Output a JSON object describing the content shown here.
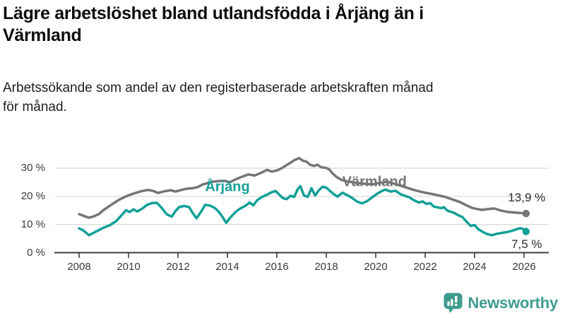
{
  "header": {
    "title": "Lägre arbetslöshet bland utlandsfödda i Årjäng än i\nVärmland",
    "subtitle": "Arbetssökande som andel av den registerbaserade arbetskraften månad\nför månad."
  },
  "footer": {
    "brand": "Newsworthy",
    "logo_icon": "bar-chart-speech-bubble-icon"
  },
  "colors": {
    "arjang_line": "#12A096",
    "varmland_line": "#757575",
    "grid": "#DBDBDB",
    "axis": "#3C3C3C",
    "tick_text": "#3A3A3A",
    "value_text": "#2B2B2B",
    "logo_teal": "#3E9C8F"
  },
  "chart_data": {
    "type": "line",
    "unit": "%",
    "grid": "horizontal",
    "x_axis": {
      "ticks": [
        2008,
        2010,
        2012,
        2014,
        2016,
        2018,
        2020,
        2022,
        2024,
        2026
      ],
      "range": [
        2007.9,
        2027
      ]
    },
    "y_axis": {
      "range": [
        0,
        35
      ],
      "ticks": [
        {
          "value": 0,
          "label": "0 %"
        },
        {
          "value": 10,
          "label": "10 %"
        },
        {
          "value": 20,
          "label": "20 %"
        },
        {
          "value": 30,
          "label": "30 %"
        }
      ]
    },
    "series": [
      {
        "name": "Värmland",
        "slug": "varmland",
        "color": "#757575",
        "end_value": 13.9,
        "end_value_label": "13,9 %",
        "name_label_at": {
          "x": 2019.95,
          "y": 25.0
        },
        "end_label_offset": {
          "dx": 1,
          "dy": -22
        },
        "points": [
          [
            2008.0,
            13.7
          ],
          [
            2008.2,
            13.0
          ],
          [
            2008.4,
            12.4
          ],
          [
            2008.6,
            12.9
          ],
          [
            2008.8,
            13.7
          ],
          [
            2009.0,
            15.2
          ],
          [
            2009.3,
            17.0
          ],
          [
            2009.6,
            18.7
          ],
          [
            2009.9,
            20.0
          ],
          [
            2010.2,
            21.0
          ],
          [
            2010.5,
            21.8
          ],
          [
            2010.8,
            22.3
          ],
          [
            2011.0,
            21.9
          ],
          [
            2011.2,
            21.2
          ],
          [
            2011.45,
            21.8
          ],
          [
            2011.7,
            22.2
          ],
          [
            2011.9,
            21.7
          ],
          [
            2012.1,
            22.2
          ],
          [
            2012.35,
            22.7
          ],
          [
            2012.6,
            22.9
          ],
          [
            2012.8,
            23.3
          ],
          [
            2013.0,
            24.2
          ],
          [
            2013.2,
            24.7
          ],
          [
            2013.4,
            25.2
          ],
          [
            2013.65,
            25.4
          ],
          [
            2013.9,
            25.5
          ],
          [
            2014.1,
            25.0
          ],
          [
            2014.35,
            26.1
          ],
          [
            2014.6,
            27.0
          ],
          [
            2014.85,
            27.8
          ],
          [
            2015.1,
            27.4
          ],
          [
            2015.35,
            28.3
          ],
          [
            2015.6,
            29.4
          ],
          [
            2015.8,
            28.8
          ],
          [
            2016.0,
            29.2
          ],
          [
            2016.2,
            30.0
          ],
          [
            2016.45,
            31.4
          ],
          [
            2016.7,
            32.8
          ],
          [
            2016.9,
            33.6
          ],
          [
            2017.05,
            32.7
          ],
          [
            2017.2,
            32.3
          ],
          [
            2017.35,
            31.2
          ],
          [
            2017.5,
            30.8
          ],
          [
            2017.65,
            31.2
          ],
          [
            2017.8,
            30.3
          ],
          [
            2017.95,
            30.2
          ],
          [
            2018.1,
            29.7
          ],
          [
            2018.25,
            28.2
          ],
          [
            2018.4,
            27.0
          ],
          [
            2018.6,
            25.9
          ],
          [
            2018.8,
            25.4
          ],
          [
            2019.0,
            25.1
          ],
          [
            2019.3,
            24.7
          ],
          [
            2019.6,
            24.4
          ],
          [
            2019.9,
            24.3
          ],
          [
            2020.2,
            24.8
          ],
          [
            2020.45,
            25.2
          ],
          [
            2020.7,
            24.6
          ],
          [
            2021.0,
            23.8
          ],
          [
            2021.25,
            23.1
          ],
          [
            2021.5,
            22.4
          ],
          [
            2021.75,
            21.8
          ],
          [
            2022.0,
            21.3
          ],
          [
            2022.3,
            20.8
          ],
          [
            2022.6,
            20.2
          ],
          [
            2022.8,
            19.8
          ],
          [
            2023.0,
            19.2
          ],
          [
            2023.2,
            18.6
          ],
          [
            2023.4,
            18.0
          ],
          [
            2023.65,
            16.9
          ],
          [
            2023.9,
            15.9
          ],
          [
            2024.1,
            15.5
          ],
          [
            2024.3,
            15.2
          ],
          [
            2024.55,
            15.5
          ],
          [
            2024.8,
            15.7
          ],
          [
            2025.05,
            15.0
          ],
          [
            2025.3,
            14.5
          ],
          [
            2025.55,
            14.3
          ],
          [
            2025.8,
            14.1
          ],
          [
            2026.08,
            13.9
          ]
        ]
      },
      {
        "name": "Årjäng",
        "slug": "arjang",
        "color": "#12A096",
        "end_value": 7.5,
        "end_value_label": "7,5 %",
        "name_label_at": {
          "x": 2014.0,
          "y": 23.3
        },
        "end_label_offset": {
          "dx": 1,
          "dy": 18
        },
        "points": [
          [
            2008.0,
            8.6
          ],
          [
            2008.15,
            8.0
          ],
          [
            2008.4,
            6.2
          ],
          [
            2008.6,
            7.1
          ],
          [
            2008.8,
            8.0
          ],
          [
            2009.0,
            8.9
          ],
          [
            2009.25,
            9.8
          ],
          [
            2009.5,
            11.2
          ],
          [
            2009.75,
            13.6
          ],
          [
            2009.9,
            15.1
          ],
          [
            2010.05,
            14.4
          ],
          [
            2010.2,
            15.4
          ],
          [
            2010.35,
            14.6
          ],
          [
            2010.55,
            15.6
          ],
          [
            2010.75,
            17.0
          ],
          [
            2010.95,
            17.6
          ],
          [
            2011.15,
            17.7
          ],
          [
            2011.35,
            15.8
          ],
          [
            2011.55,
            13.6
          ],
          [
            2011.75,
            12.8
          ],
          [
            2011.9,
            14.8
          ],
          [
            2012.05,
            16.2
          ],
          [
            2012.25,
            16.6
          ],
          [
            2012.45,
            16.2
          ],
          [
            2012.6,
            14.0
          ],
          [
            2012.75,
            12.2
          ],
          [
            2012.95,
            14.8
          ],
          [
            2013.1,
            17.0
          ],
          [
            2013.3,
            16.7
          ],
          [
            2013.5,
            15.8
          ],
          [
            2013.65,
            14.5
          ],
          [
            2013.8,
            12.7
          ],
          [
            2013.95,
            10.6
          ],
          [
            2014.1,
            12.3
          ],
          [
            2014.3,
            14.2
          ],
          [
            2014.5,
            15.6
          ],
          [
            2014.7,
            16.5
          ],
          [
            2014.9,
            17.8
          ],
          [
            2015.05,
            16.8
          ],
          [
            2015.2,
            18.6
          ],
          [
            2015.4,
            19.8
          ],
          [
            2015.6,
            20.6
          ],
          [
            2015.8,
            21.5
          ],
          [
            2015.95,
            21.9
          ],
          [
            2016.1,
            20.6
          ],
          [
            2016.25,
            19.3
          ],
          [
            2016.4,
            19.0
          ],
          [
            2016.55,
            20.2
          ],
          [
            2016.7,
            19.8
          ],
          [
            2016.85,
            22.6
          ],
          [
            2016.95,
            23.6
          ],
          [
            2017.1,
            20.3
          ],
          [
            2017.25,
            19.8
          ],
          [
            2017.4,
            22.9
          ],
          [
            2017.55,
            20.3
          ],
          [
            2017.7,
            22.2
          ],
          [
            2017.85,
            23.4
          ],
          [
            2018.0,
            23.1
          ],
          [
            2018.15,
            21.9
          ],
          [
            2018.3,
            20.8
          ],
          [
            2018.45,
            19.9
          ],
          [
            2018.65,
            21.3
          ],
          [
            2018.85,
            20.4
          ],
          [
            2019.05,
            19.4
          ],
          [
            2019.25,
            18.1
          ],
          [
            2019.45,
            17.5
          ],
          [
            2019.65,
            18.3
          ],
          [
            2019.85,
            19.6
          ],
          [
            2020.05,
            20.9
          ],
          [
            2020.25,
            21.9
          ],
          [
            2020.4,
            22.4
          ],
          [
            2020.6,
            21.7
          ],
          [
            2020.8,
            22.0
          ],
          [
            2021.0,
            20.8
          ],
          [
            2021.2,
            20.1
          ],
          [
            2021.35,
            19.7
          ],
          [
            2021.55,
            18.6
          ],
          [
            2021.75,
            17.8
          ],
          [
            2021.9,
            18.2
          ],
          [
            2022.05,
            17.3
          ],
          [
            2022.2,
            17.6
          ],
          [
            2022.35,
            16.4
          ],
          [
            2022.5,
            16.1
          ],
          [
            2022.65,
            15.8
          ],
          [
            2022.75,
            16.2
          ],
          [
            2022.9,
            14.9
          ],
          [
            2023.05,
            14.5
          ],
          [
            2023.2,
            14.0
          ],
          [
            2023.35,
            13.2
          ],
          [
            2023.5,
            12.7
          ],
          [
            2023.65,
            11.2
          ],
          [
            2023.75,
            10.3
          ],
          [
            2023.85,
            9.5
          ],
          [
            2024.0,
            9.8
          ],
          [
            2024.15,
            8.3
          ],
          [
            2024.3,
            7.5
          ],
          [
            2024.5,
            6.6
          ],
          [
            2024.7,
            6.2
          ],
          [
            2024.9,
            6.7
          ],
          [
            2025.1,
            7.0
          ],
          [
            2025.3,
            7.3
          ],
          [
            2025.5,
            7.7
          ],
          [
            2025.7,
            8.3
          ],
          [
            2025.85,
            8.7
          ],
          [
            2026.0,
            8.3
          ],
          [
            2026.08,
            7.5
          ]
        ]
      }
    ]
  }
}
